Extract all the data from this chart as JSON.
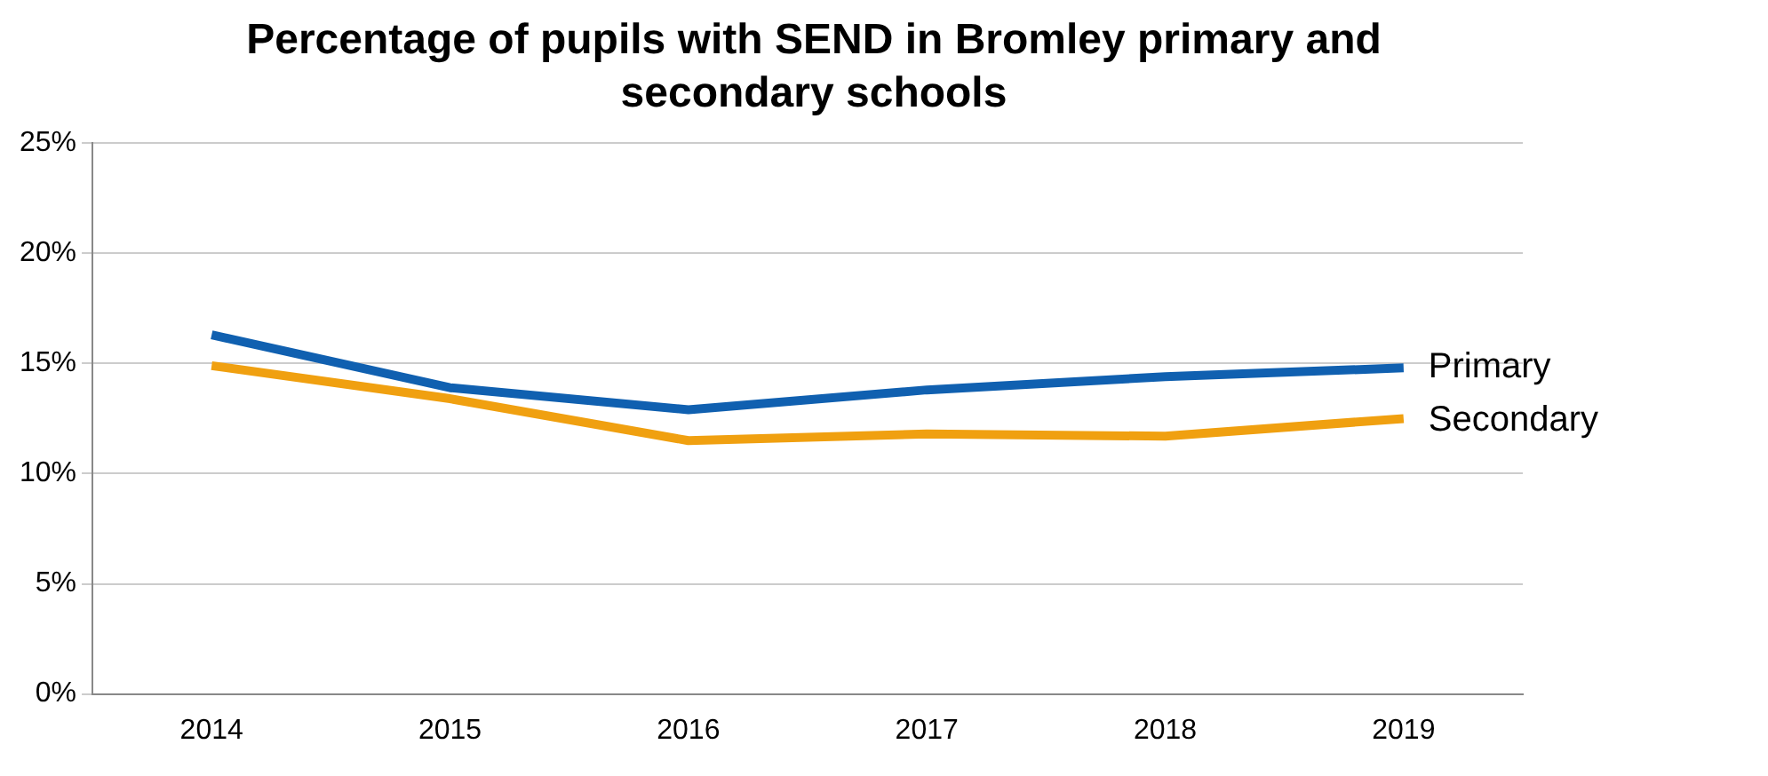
{
  "chart_data": {
    "type": "line",
    "title": "Percentage of pupils with SEND in Bromley primary and secondary schools",
    "categories": [
      "2014",
      "2015",
      "2016",
      "2017",
      "2018",
      "2019"
    ],
    "series": [
      {
        "name": "Primary",
        "color": "#1060b0",
        "values": [
          16.3,
          13.9,
          12.9,
          13.8,
          14.4,
          14.8
        ]
      },
      {
        "name": "Secondary",
        "color": "#f0a010",
        "values": [
          14.9,
          13.4,
          11.5,
          11.8,
          11.7,
          12.5
        ]
      }
    ],
    "ylim": [
      0,
      25
    ],
    "yticks": [
      {
        "value": 0,
        "label": "0%"
      },
      {
        "value": 5,
        "label": "5%"
      },
      {
        "value": 10,
        "label": "10%"
      },
      {
        "value": 15,
        "label": "15%"
      },
      {
        "value": 20,
        "label": "20%"
      },
      {
        "value": 25,
        "label": "25%"
      }
    ],
    "grid": "y",
    "legend": false,
    "marker": "none",
    "line_style": "solid"
  }
}
